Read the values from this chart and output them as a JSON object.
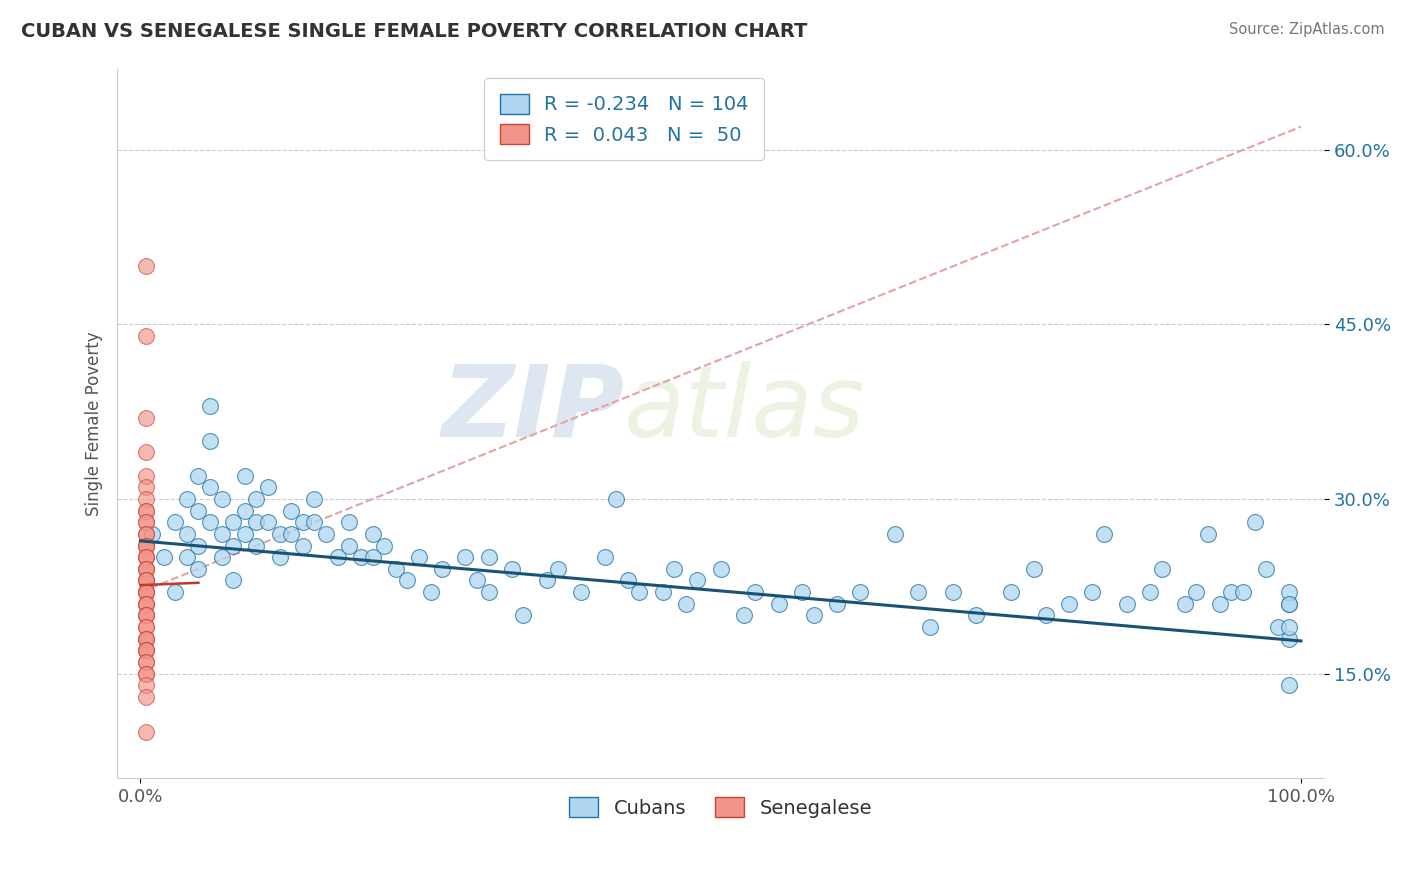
{
  "title": "CUBAN VS SENEGALESE SINGLE FEMALE POVERTY CORRELATION CHART",
  "source": "Source: ZipAtlas.com",
  "ylabel": "Single Female Poverty",
  "xlim": [
    -0.02,
    1.02
  ],
  "ylim": [
    0.06,
    0.67
  ],
  "yticks": [
    0.15,
    0.3,
    0.45,
    0.6
  ],
  "ytick_labels": [
    "15.0%",
    "30.0%",
    "45.0%",
    "60.0%"
  ],
  "xticks": [
    0.0,
    1.0
  ],
  "xtick_labels": [
    "0.0%",
    "100.0%"
  ],
  "legend_r_cuban": "-0.234",
  "legend_n_cuban": "104",
  "legend_r_senegalese": "0.043",
  "legend_n_senegalese": "50",
  "cuban_color": "#AED6F1",
  "senegalese_color": "#F1948A",
  "cuban_edge_color": "#2471A3",
  "senegalese_edge_color": "#CB4335",
  "cuban_line_color": "#1A5276",
  "senegalese_line_color": "#E8A0A0",
  "background_color": "#FFFFFF",
  "watermark_zip": "ZIP",
  "watermark_atlas": "atlas",
  "cuban_x": [
    0.01,
    0.02,
    0.03,
    0.03,
    0.04,
    0.04,
    0.04,
    0.05,
    0.05,
    0.05,
    0.05,
    0.06,
    0.06,
    0.06,
    0.06,
    0.07,
    0.07,
    0.07,
    0.08,
    0.08,
    0.08,
    0.09,
    0.09,
    0.09,
    0.1,
    0.1,
    0.1,
    0.11,
    0.11,
    0.12,
    0.12,
    0.13,
    0.13,
    0.14,
    0.14,
    0.15,
    0.15,
    0.16,
    0.17,
    0.18,
    0.18,
    0.19,
    0.2,
    0.2,
    0.21,
    0.22,
    0.23,
    0.24,
    0.25,
    0.26,
    0.28,
    0.29,
    0.3,
    0.3,
    0.32,
    0.33,
    0.35,
    0.36,
    0.38,
    0.4,
    0.41,
    0.42,
    0.43,
    0.45,
    0.46,
    0.47,
    0.48,
    0.5,
    0.52,
    0.53,
    0.55,
    0.57,
    0.58,
    0.6,
    0.62,
    0.65,
    0.67,
    0.68,
    0.7,
    0.72,
    0.75,
    0.77,
    0.78,
    0.8,
    0.82,
    0.83,
    0.85,
    0.87,
    0.88,
    0.9,
    0.91,
    0.92,
    0.93,
    0.94,
    0.95,
    0.96,
    0.97,
    0.98,
    0.99,
    0.99,
    0.99,
    0.99,
    0.99,
    0.99
  ],
  "cuban_y": [
    0.27,
    0.25,
    0.22,
    0.28,
    0.3,
    0.27,
    0.25,
    0.32,
    0.29,
    0.26,
    0.24,
    0.38,
    0.35,
    0.31,
    0.28,
    0.3,
    0.27,
    0.25,
    0.28,
    0.26,
    0.23,
    0.32,
    0.29,
    0.27,
    0.3,
    0.28,
    0.26,
    0.31,
    0.28,
    0.27,
    0.25,
    0.29,
    0.27,
    0.28,
    0.26,
    0.3,
    0.28,
    0.27,
    0.25,
    0.28,
    0.26,
    0.25,
    0.27,
    0.25,
    0.26,
    0.24,
    0.23,
    0.25,
    0.22,
    0.24,
    0.25,
    0.23,
    0.22,
    0.25,
    0.24,
    0.2,
    0.23,
    0.24,
    0.22,
    0.25,
    0.3,
    0.23,
    0.22,
    0.22,
    0.24,
    0.21,
    0.23,
    0.24,
    0.2,
    0.22,
    0.21,
    0.22,
    0.2,
    0.21,
    0.22,
    0.27,
    0.22,
    0.19,
    0.22,
    0.2,
    0.22,
    0.24,
    0.2,
    0.21,
    0.22,
    0.27,
    0.21,
    0.22,
    0.24,
    0.21,
    0.22,
    0.27,
    0.21,
    0.22,
    0.22,
    0.28,
    0.24,
    0.19,
    0.21,
    0.18,
    0.22,
    0.14,
    0.19,
    0.21
  ],
  "senegalese_x": [
    0.005,
    0.005,
    0.005,
    0.005,
    0.005,
    0.005,
    0.005,
    0.005,
    0.005,
    0.005,
    0.005,
    0.005,
    0.005,
    0.005,
    0.005,
    0.005,
    0.005,
    0.005,
    0.005,
    0.005,
    0.005,
    0.005,
    0.005,
    0.005,
    0.005,
    0.005,
    0.005,
    0.005,
    0.005,
    0.005,
    0.005,
    0.005,
    0.005,
    0.005,
    0.005,
    0.005,
    0.005,
    0.005,
    0.005,
    0.005,
    0.005,
    0.005,
    0.005,
    0.005,
    0.005,
    0.005,
    0.005,
    0.005,
    0.005,
    0.005
  ],
  "senegalese_y": [
    0.5,
    0.44,
    0.37,
    0.34,
    0.32,
    0.31,
    0.3,
    0.29,
    0.29,
    0.28,
    0.28,
    0.27,
    0.27,
    0.26,
    0.26,
    0.26,
    0.25,
    0.25,
    0.25,
    0.24,
    0.24,
    0.24,
    0.23,
    0.23,
    0.23,
    0.22,
    0.22,
    0.22,
    0.22,
    0.21,
    0.21,
    0.21,
    0.2,
    0.2,
    0.2,
    0.19,
    0.19,
    0.18,
    0.18,
    0.18,
    0.17,
    0.17,
    0.17,
    0.16,
    0.16,
    0.15,
    0.15,
    0.14,
    0.13,
    0.1
  ]
}
